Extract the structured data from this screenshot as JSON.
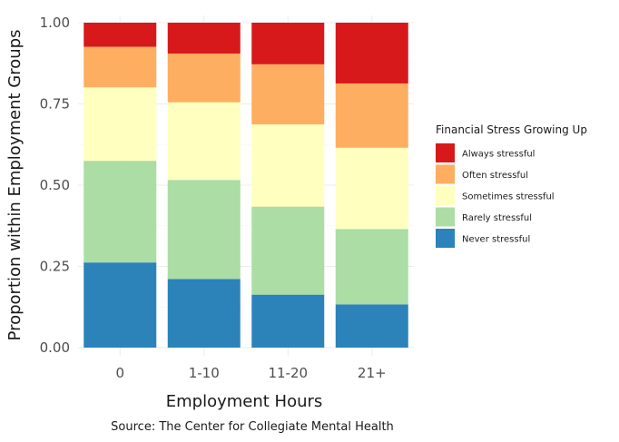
{
  "chart_data": {
    "type": "bar",
    "stacked": true,
    "xlabel": "Employment Hours",
    "ylabel": "Proportion within Employment Groups",
    "caption": "Source: The Center for Collegiate Mental Health",
    "categories": [
      "0",
      "1-10",
      "11-20",
      "21+"
    ],
    "ylim": [
      0,
      1
    ],
    "yticks": [
      "0.00",
      "0.25",
      "0.50",
      "0.75",
      "1.00"
    ],
    "grid": true,
    "legend": {
      "title": "Financial Stress Growing Up",
      "position": "right"
    },
    "series": [
      {
        "name": "Never stressful",
        "color": "#2b83ba",
        "values": [
          0.262,
          0.211,
          0.163,
          0.133
        ]
      },
      {
        "name": "Rarely stressful",
        "color": "#abdda4",
        "values": [
          0.313,
          0.305,
          0.271,
          0.232
        ]
      },
      {
        "name": "Sometimes stressful",
        "color": "#ffffbf",
        "values": [
          0.226,
          0.239,
          0.253,
          0.25
        ]
      },
      {
        "name": "Often stressful",
        "color": "#fdae61",
        "values": [
          0.125,
          0.15,
          0.185,
          0.198
        ]
      },
      {
        "name": "Always stressful",
        "color": "#d7191c",
        "values": [
          0.074,
          0.095,
          0.128,
          0.187
        ]
      }
    ],
    "legend_order": [
      "Always stressful",
      "Often stressful",
      "Sometimes stressful",
      "Rarely stressful",
      "Never stressful"
    ]
  }
}
